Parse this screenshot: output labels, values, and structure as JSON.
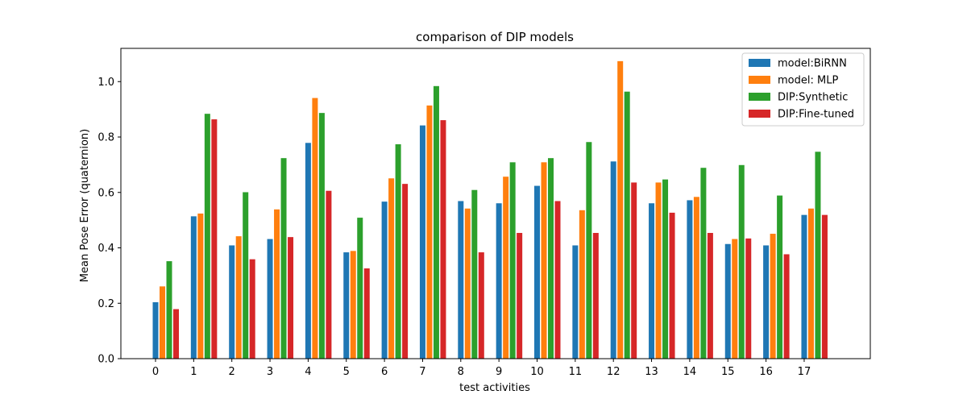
{
  "chart_data": {
    "type": "bar",
    "title": "comparison of DIP models",
    "xlabel": "test activities",
    "ylabel": "Mean Pose Error (quaternion)",
    "categories": [
      "0",
      "1",
      "2",
      "3",
      "4",
      "5",
      "6",
      "7",
      "8",
      "9",
      "10",
      "11",
      "12",
      "13",
      "14",
      "15",
      "16",
      "17"
    ],
    "ylim": [
      0,
      1.12
    ],
    "yticks": [
      0.0,
      0.2,
      0.4,
      0.6,
      0.8,
      1.0
    ],
    "ytick_labels": [
      "0.0",
      "0.2",
      "0.4",
      "0.6",
      "0.8",
      "1.0"
    ],
    "grid": false,
    "legend_position": "top-right",
    "series": [
      {
        "name": "model:BiRNN",
        "color": "#1f77b4",
        "values": [
          0.205,
          0.515,
          0.41,
          0.433,
          0.78,
          0.385,
          0.568,
          0.843,
          0.57,
          0.562,
          0.625,
          0.41,
          0.713,
          0.562,
          0.573,
          0.415,
          0.41,
          0.52
        ]
      },
      {
        "name": "model: MLP",
        "color": "#ff7f0e",
        "values": [
          0.262,
          0.525,
          0.443,
          0.54,
          0.942,
          0.39,
          0.652,
          0.915,
          0.543,
          0.658,
          0.71,
          0.537,
          1.075,
          0.637,
          0.585,
          0.433,
          0.452,
          0.543
        ]
      },
      {
        "name": "DIP:Synthetic",
        "color": "#2ca02c",
        "values": [
          0.353,
          0.885,
          0.602,
          0.725,
          0.888,
          0.51,
          0.775,
          0.985,
          0.61,
          0.71,
          0.725,
          0.783,
          0.965,
          0.648,
          0.69,
          0.7,
          0.59,
          0.748
        ]
      },
      {
        "name": "DIP:Fine-tuned",
        "color": "#d62728",
        "values": [
          0.18,
          0.865,
          0.36,
          0.44,
          0.607,
          0.327,
          0.632,
          0.862,
          0.385,
          0.455,
          0.57,
          0.455,
          0.637,
          0.528,
          0.455,
          0.435,
          0.378,
          0.52
        ]
      }
    ]
  }
}
